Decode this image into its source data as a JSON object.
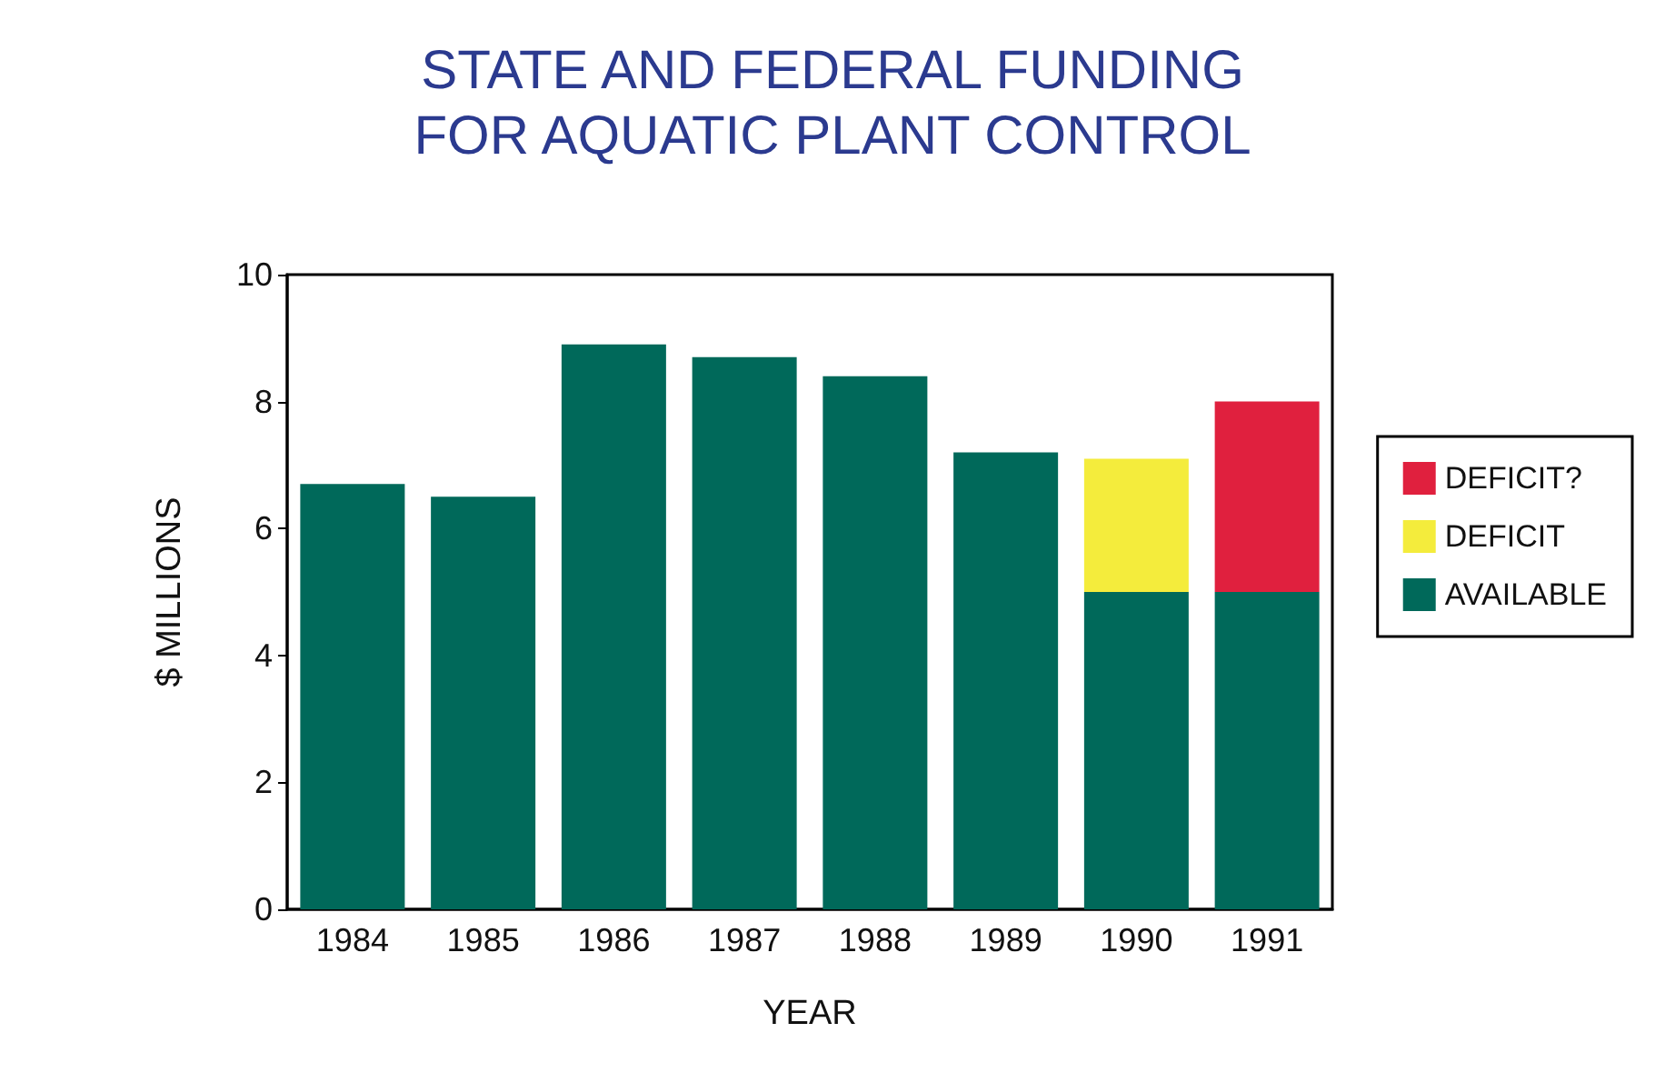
{
  "chart_data": {
    "type": "bar",
    "title": "STATE AND FEDERAL FUNDING\nFOR AQUATIC PLANT CONTROL",
    "xlabel": "YEAR",
    "ylabel": "$ MILLIONS",
    "categories": [
      "1984",
      "1985",
      "1986",
      "1987",
      "1988",
      "1989",
      "1990",
      "1991"
    ],
    "stacked": true,
    "series": [
      {
        "name": "AVAILABLE",
        "color": "#00695a",
        "values": [
          6.7,
          6.5,
          8.9,
          8.7,
          8.4,
          7.2,
          5.0,
          5.0
        ]
      },
      {
        "name": "DEFICIT",
        "color": "#f4ec3c",
        "values": [
          null,
          null,
          null,
          null,
          null,
          null,
          2.1,
          null
        ]
      },
      {
        "name": "DEFICIT?",
        "color": "#e0203e",
        "values": [
          null,
          null,
          null,
          null,
          null,
          null,
          null,
          3.0
        ]
      }
    ],
    "ylim": [
      0,
      10
    ],
    "yticks": [
      0,
      2,
      4,
      6,
      8,
      10
    ],
    "grid": false,
    "legend": "right"
  }
}
